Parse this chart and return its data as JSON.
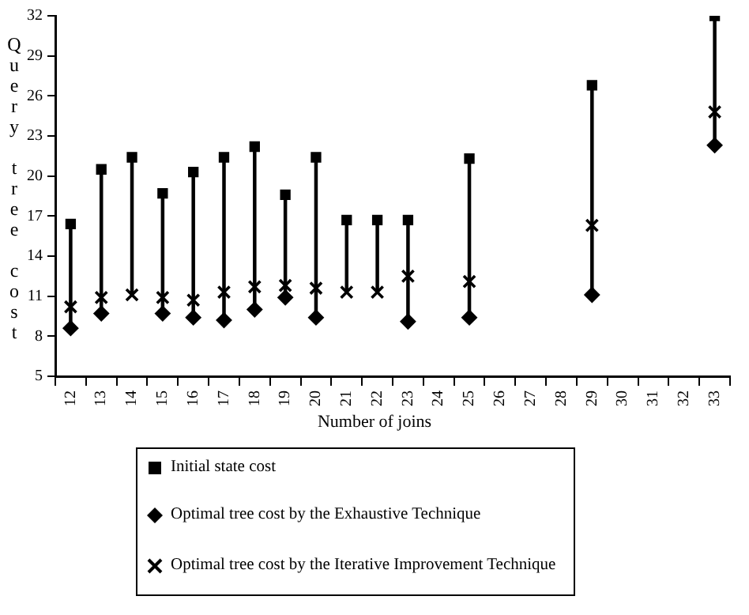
{
  "chart_data": {
    "type": "scatter",
    "xlabel": "Number of joins",
    "ylabel": "Query tree cost",
    "categories": [
      "12",
      "13",
      "14",
      "15",
      "16",
      "17",
      "18",
      "19",
      "20",
      "21",
      "22",
      "23",
      "24",
      "25",
      "26",
      "27",
      "28",
      "29",
      "30",
      "31",
      "32",
      "33"
    ],
    "ylim": [
      5,
      32
    ],
    "yticks": [
      5,
      8,
      11,
      14,
      17,
      20,
      23,
      26,
      29,
      32
    ],
    "grid": false,
    "legend": "bottom",
    "series": [
      {
        "type": "bar",
        "color": "#000000",
        "base": [
          8.6,
          9.7,
          11.1,
          9.7,
          9.4,
          9.2,
          10.0,
          10.9,
          9.4,
          11.3,
          11.3,
          9.1,
          null,
          9.4,
          null,
          null,
          null,
          11.1,
          null,
          null,
          null,
          22.3
        ],
        "values": [
          7.8,
          10.8,
          10.3,
          9.0,
          10.9,
          12.2,
          12.2,
          7.7,
          12.0,
          5.4,
          5.4,
          7.6,
          null,
          11.9,
          null,
          null,
          null,
          15.7,
          null,
          null,
          null,
          9.7
        ]
      },
      {
        "name": "Initial state cost",
        "color": "#000000",
        "marker": "square",
        "values": [
          16.4,
          20.5,
          21.4,
          18.7,
          20.3,
          21.4,
          22.2,
          18.6,
          21.4,
          16.7,
          16.7,
          16.7,
          null,
          21.3,
          null,
          null,
          null,
          26.8,
          null,
          null,
          null,
          32.0
        ]
      },
      {
        "name": "Optimal tree cost by the Exhaustive Technique",
        "color": "#000000",
        "marker": "diamond",
        "values": [
          8.6,
          9.7,
          null,
          9.7,
          9.4,
          9.2,
          10.0,
          10.9,
          9.4,
          null,
          null,
          9.1,
          null,
          9.4,
          null,
          null,
          null,
          11.1,
          null,
          null,
          null,
          22.3
        ]
      },
      {
        "name": "Optimal tree cost by the Iterative Improvement Technique",
        "color": "#000000",
        "marker": "cross",
        "values": [
          10.2,
          10.9,
          11.1,
          10.9,
          10.7,
          11.3,
          11.7,
          11.8,
          11.6,
          11.3,
          11.3,
          12.5,
          null,
          12.1,
          null,
          null,
          null,
          16.3,
          null,
          null,
          null,
          24.8
        ]
      }
    ]
  }
}
